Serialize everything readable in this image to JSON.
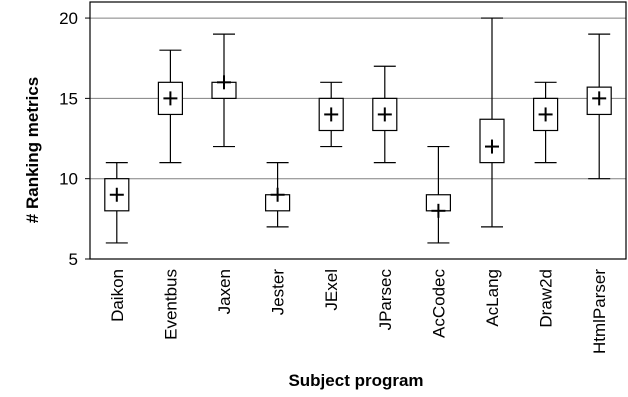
{
  "chart_data": {
    "type": "box",
    "title": "",
    "xlabel": "Subject program",
    "ylabel": "# Ranking metrics",
    "ylim": [
      5,
      21
    ],
    "yticks": [
      5,
      10,
      15,
      20
    ],
    "grid": "horizontal",
    "categories": [
      "Daikon",
      "Eventbus",
      "Jaxen",
      "Jester",
      "JExel",
      "JParsec",
      "AcCodec",
      "AcLang",
      "Draw2d",
      "HtmlParser"
    ],
    "boxes": [
      {
        "name": "Daikon",
        "min": 6,
        "q1": 8,
        "q3": 10,
        "max": 11,
        "mean": 9
      },
      {
        "name": "Eventbus",
        "min": 11,
        "q1": 14,
        "q3": 16,
        "max": 18,
        "mean": 15
      },
      {
        "name": "Jaxen",
        "min": 12,
        "q1": 15,
        "q3": 16,
        "max": 19,
        "mean": 16
      },
      {
        "name": "Jester",
        "min": 7,
        "q1": 8,
        "q3": 9,
        "max": 11,
        "mean": 9
      },
      {
        "name": "JExel",
        "min": 12,
        "q1": 13,
        "q3": 15,
        "max": 16,
        "mean": 14
      },
      {
        "name": "JParsec",
        "min": 11,
        "q1": 13,
        "q3": 15,
        "max": 17,
        "mean": 14
      },
      {
        "name": "AcCodec",
        "min": 6,
        "q1": 8,
        "q3": 9,
        "max": 12,
        "mean": 8
      },
      {
        "name": "AcLang",
        "min": 7,
        "q1": 11,
        "q3": 13.7,
        "max": 20,
        "mean": 12
      },
      {
        "name": "Draw2d",
        "min": 11,
        "q1": 13,
        "q3": 15,
        "max": 16,
        "mean": 14
      },
      {
        "name": "HtmlParser",
        "min": 10,
        "q1": 14,
        "q3": 15.7,
        "max": 19,
        "mean": 15
      }
    ],
    "colors": {
      "box_fill": "#ffffff",
      "stroke": "#000000",
      "grid": "#808080"
    }
  }
}
